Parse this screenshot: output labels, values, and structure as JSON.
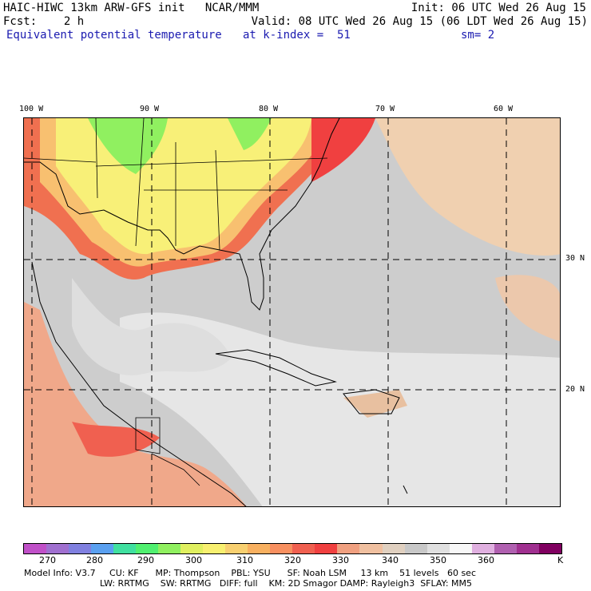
{
  "header": {
    "model_title": "HAIC-HIWC 13km ARW-GFS init   NCAR/MMM",
    "init": "Init: 06 UTC Wed 26 Aug 15",
    "fcst_label": "Fcst:    2 h",
    "valid": "Valid: 08 UTC Wed 26 Aug 15 (06 LDT Wed 26 Aug 15)",
    "field_name": "Equivalent potential temperature",
    "level": "at k-index =  51",
    "smoothing": "sm= 2"
  },
  "map": {
    "lon_labels": [
      "100 W",
      "90 W",
      "80 W",
      "70 W",
      "60 W"
    ],
    "lat_labels": [
      "30 N",
      "20 N"
    ]
  },
  "colorbar": {
    "units": "K",
    "tick_labels": [
      "270",
      "280",
      "290",
      "300",
      "310",
      "320",
      "330",
      "340",
      "350",
      "360"
    ],
    "colors": [
      "#c050c8",
      "#a070d0",
      "#8080e0",
      "#5aa0f0",
      "#40e0a0",
      "#50f070",
      "#90f060",
      "#e0f060",
      "#f8f070",
      "#f8d070",
      "#f8b060",
      "#f89060",
      "#f06050",
      "#f04040",
      "#f0a080",
      "#f0c0a0",
      "#e0d0c0",
      "#c8c8c8",
      "#e0e0e0",
      "#f8f8f8",
      "#e0b0e0",
      "#b060b0",
      "#a03090",
      "#800060"
    ]
  },
  "footer": {
    "line1": "Model Info: V3.7     CU: KF      MP: Thompson    PBL: YSU      SF: Noah LSM     13 km    51 levels   60 sec",
    "line2": "LW: RRTMG    SW: RRTMG   DIFF: full    KM: 2D Smagor DAMP: Rayleigh3  SFLAY: MM5"
  }
}
